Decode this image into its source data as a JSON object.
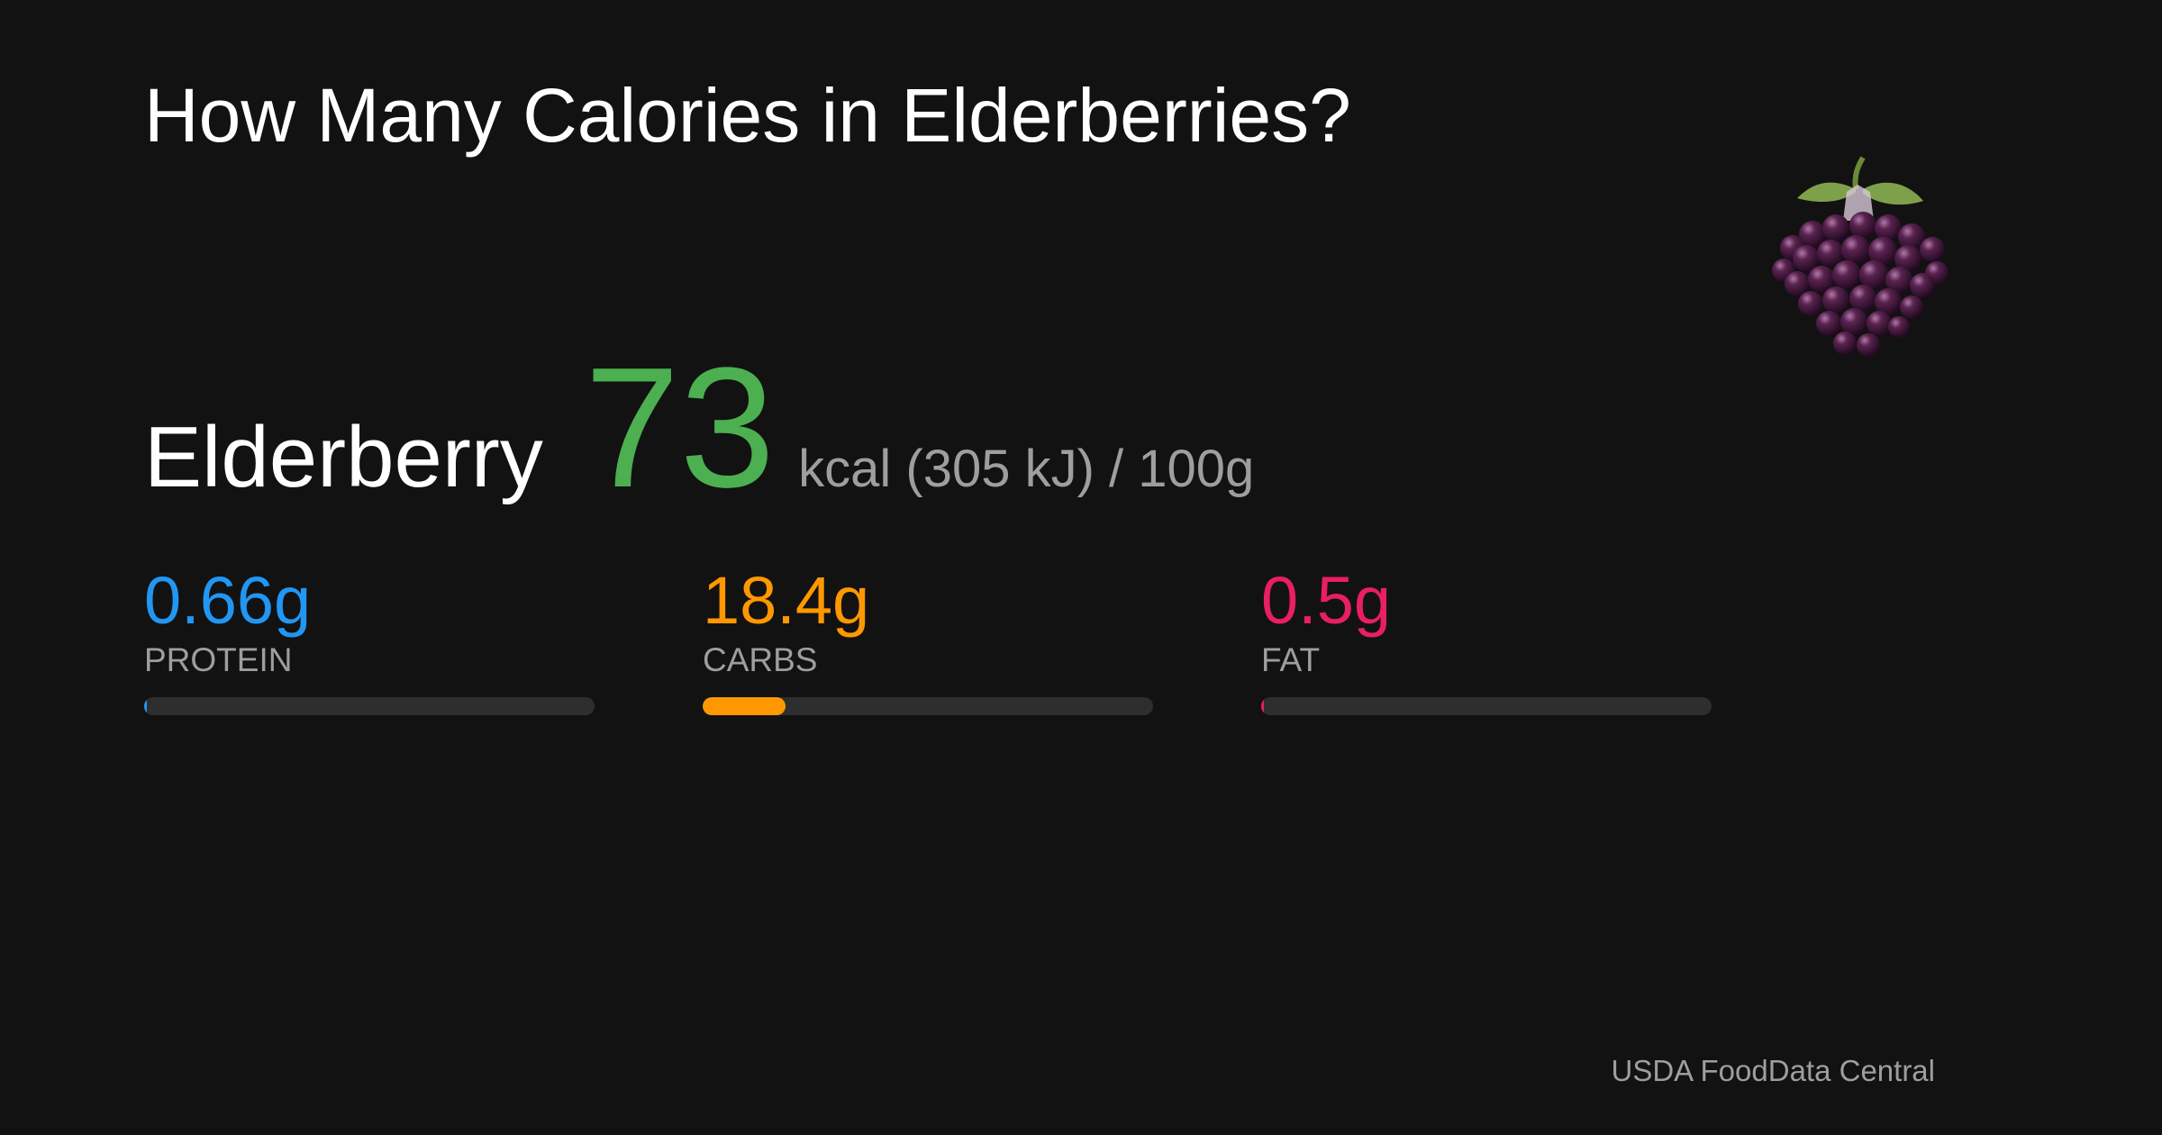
{
  "title": "How Many Calories in Elderberries?",
  "food": "Elderberry",
  "calories": 73,
  "calories_color": "#4caf50",
  "energy_detail": "kcal (305 kJ) / 100g",
  "macros": [
    {
      "name": "PROTEIN",
      "value": 0.66,
      "label": "0.66g",
      "color": "#2196f3"
    },
    {
      "name": "CARBS",
      "value": 18.4,
      "label": "18.4g",
      "color": "#ff9800"
    },
    {
      "name": "FAT",
      "value": 0.5,
      "label": "0.5g",
      "color": "#e91e63"
    }
  ],
  "source": "USDA FoodData Central"
}
